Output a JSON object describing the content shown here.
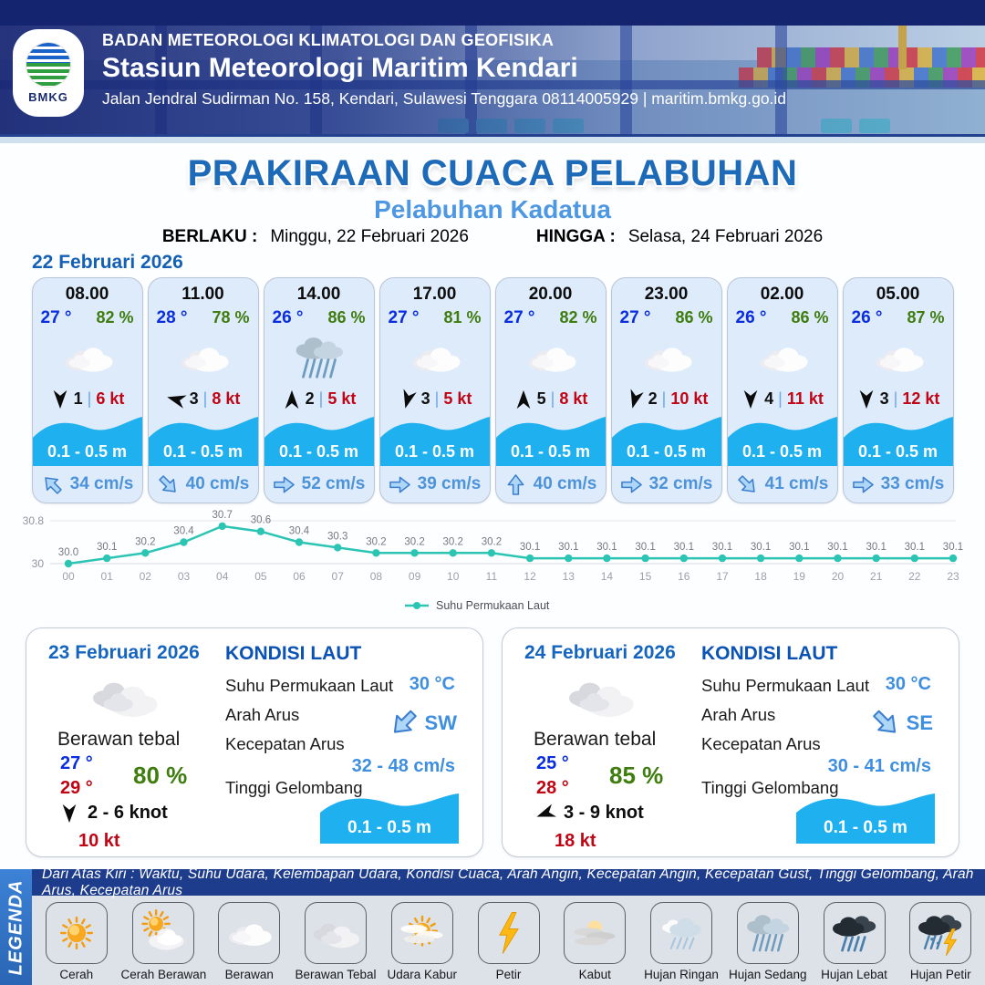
{
  "header": {
    "agency": "BADAN METEOROLOGI KLIMATOLOGI DAN GEOFISIKA",
    "station": "Stasiun Meteorologi Maritim Kendari",
    "address": "Jalan Jendral Sudirman No. 158, Kendari, Sulawesi Tenggara  08114005929 | maritim.bmkg.go.id",
    "logo_text": "BMKG"
  },
  "title": {
    "main": "PRAKIRAAN CUACA PELABUHAN",
    "port": "Pelabuhan Kadatua",
    "valid_from_label": "BERLAKU :",
    "valid_from": "Minggu, 22 Februari 2026",
    "valid_to_label": "HINGGA :",
    "valid_to": "Selasa, 24 Februari 2026"
  },
  "forecast_date": "22 Februari 2026",
  "ui": {
    "separator": "|"
  },
  "cards": [
    {
      "time": "08.00",
      "temp": "27 °",
      "humidity": "82 %",
      "icon": "berawan",
      "wind_dir_deg": 180,
      "wind_val": "1",
      "wind_speed": "6 kt",
      "wave": "0.1 - 0.5 m",
      "current_dir_deg": -135,
      "current": "34 cm/s"
    },
    {
      "time": "11.00",
      "temp": "28 °",
      "humidity": "78 %",
      "icon": "berawan",
      "wind_dir_deg": -75,
      "wind_val": "3",
      "wind_speed": "8 kt",
      "wave": "0.1 - 0.5 m",
      "current_dir_deg": 45,
      "current": "40 cm/s"
    },
    {
      "time": "14.00",
      "temp": "26 °",
      "humidity": "86 %",
      "icon": "hujan-sedang",
      "wind_dir_deg": 0,
      "wind_val": "2",
      "wind_speed": "5 kt",
      "wave": "0.1 - 0.5 m",
      "current_dir_deg": 0,
      "current": "52 cm/s"
    },
    {
      "time": "17.00",
      "temp": "27 °",
      "humidity": "81 %",
      "icon": "berawan",
      "wind_dir_deg": 195,
      "wind_val": "3",
      "wind_speed": "5 kt",
      "wave": "0.1 - 0.5 m",
      "current_dir_deg": 0,
      "current": "39 cm/s"
    },
    {
      "time": "20.00",
      "temp": "27 °",
      "humidity": "82 %",
      "icon": "berawan",
      "wind_dir_deg": 0,
      "wind_val": "5",
      "wind_speed": "8 kt",
      "wave": "0.1 - 0.5 m",
      "current_dir_deg": -90,
      "current": "40 cm/s"
    },
    {
      "time": "23.00",
      "temp": "27 °",
      "humidity": "86 %",
      "icon": "berawan",
      "wind_dir_deg": 195,
      "wind_val": "2",
      "wind_speed": "10 kt",
      "wave": "0.1 - 0.5 m",
      "current_dir_deg": 0,
      "current": "32 cm/s"
    },
    {
      "time": "02.00",
      "temp": "26 °",
      "humidity": "86 %",
      "icon": "berawan",
      "wind_dir_deg": 180,
      "wind_val": "4",
      "wind_speed": "11 kt",
      "wave": "0.1 - 0.5 m",
      "current_dir_deg": 45,
      "current": "41 cm/s"
    },
    {
      "time": "05.00",
      "temp": "26 °",
      "humidity": "87 %",
      "icon": "berawan",
      "wind_dir_deg": 180,
      "wind_val": "3",
      "wind_speed": "12 kt",
      "wave": "0.1 - 0.5 m",
      "current_dir_deg": 0,
      "current": "33 cm/s"
    }
  ],
  "chart_data": {
    "type": "line",
    "x": [
      "00",
      "01",
      "02",
      "03",
      "04",
      "05",
      "06",
      "07",
      "08",
      "09",
      "10",
      "11",
      "12",
      "13",
      "14",
      "15",
      "16",
      "17",
      "18",
      "19",
      "20",
      "21",
      "22",
      "23"
    ],
    "series": [
      {
        "name": "Suhu Permukaan Laut",
        "values": [
          30.0,
          30.1,
          30.2,
          30.4,
          30.7,
          30.6,
          30.4,
          30.3,
          30.2,
          30.2,
          30.2,
          30.2,
          30.1,
          30.1,
          30.1,
          30.1,
          30.1,
          30.1,
          30.1,
          30.1,
          30.1,
          30.1,
          30.1,
          30.1
        ]
      }
    ],
    "ylim": [
      30,
      30.8
    ],
    "yticks": [
      "30",
      "30.8"
    ],
    "point_labels": true,
    "legend_position": "bottom",
    "grid": true
  },
  "days": [
    {
      "date": "23 Februari 2026",
      "icon": "berawan-tebal",
      "condition": "Berawan tebal",
      "temp_min": "27 °",
      "temp_max": "29 °",
      "humidity": "80 %",
      "wind_dir_deg": 180,
      "wind_range": "2 - 6 knot",
      "gust": "10 kt",
      "sea": {
        "title": "KONDISI LAUT",
        "sst_label": "Suhu Permukaan Laut",
        "sst": "30 °C",
        "current_dir_label": "Arah Arus",
        "current_dir": "SW",
        "current_dir_deg": 135,
        "current_speed_label": "Kecepatan Arus",
        "current_speed": "32 - 48 cm/s",
        "wave_label": "Tinggi Gelombang",
        "wave": "0.1 - 0.5 m"
      }
    },
    {
      "date": "24 Februari 2026",
      "icon": "berawan-tebal",
      "condition": "Berawan tebal",
      "temp_min": "25 °",
      "temp_max": "28 °",
      "humidity": "85 %",
      "wind_dir_deg": -110,
      "wind_range": "3 - 9 knot",
      "gust": "18 kt",
      "sea": {
        "title": "KONDISI LAUT",
        "sst_label": "Suhu Permukaan Laut",
        "sst": "30 °C",
        "current_dir_label": "Arah Arus",
        "current_dir": "SE",
        "current_dir_deg": 45,
        "current_speed_label": "Kecepatan Arus",
        "current_speed": "30 - 41 cm/s",
        "wave_label": "Tinggi Gelombang",
        "wave": "0.1 - 0.5 m"
      }
    }
  ],
  "legend": {
    "label": "LEGENDA",
    "description": "Dari Atas Kiri : Waktu, Suhu Udara, Kelembapan Udara, Kondisi Cuaca, Arah Angin, Kecepatan Angin, Kecepatan Gust, Tinggi Gelombang, Arah Arus, Kecepatan Arus",
    "items": [
      {
        "label": "Cerah",
        "icon": "cerah"
      },
      {
        "label": "Cerah Berawan",
        "icon": "cerah-berawan"
      },
      {
        "label": "Berawan",
        "icon": "berawan"
      },
      {
        "label": "Berawan Tebal",
        "icon": "berawan-tebal"
      },
      {
        "label": "Udara Kabur",
        "icon": "udara-kabur"
      },
      {
        "label": "Petir",
        "icon": "petir"
      },
      {
        "label": "Kabut",
        "icon": "kabut"
      },
      {
        "label": "Hujan Ringan",
        "icon": "hujan-ringan"
      },
      {
        "label": "Hujan Sedang",
        "icon": "hujan-sedang"
      },
      {
        "label": "Hujan Lebat",
        "icon": "hujan-lebat"
      },
      {
        "label": "Hujan Petir",
        "icon": "hujan-petir"
      }
    ]
  },
  "colors": {
    "title_blue": "#1d6ab8",
    "subtitle_blue": "#4e97e3",
    "date_blue": "#1460b4",
    "temp_blue": "#0a2de0",
    "humidity_green": "#3f7d0f",
    "wind_speed_red": "#c00514",
    "wave_cyan": "#1fb0f0",
    "current_text_blue": "#4d93da",
    "chart_teal": "#2cc5b4",
    "legend_bar_blue": "#2e74c4",
    "strip_navy": "#1d3c8c"
  }
}
